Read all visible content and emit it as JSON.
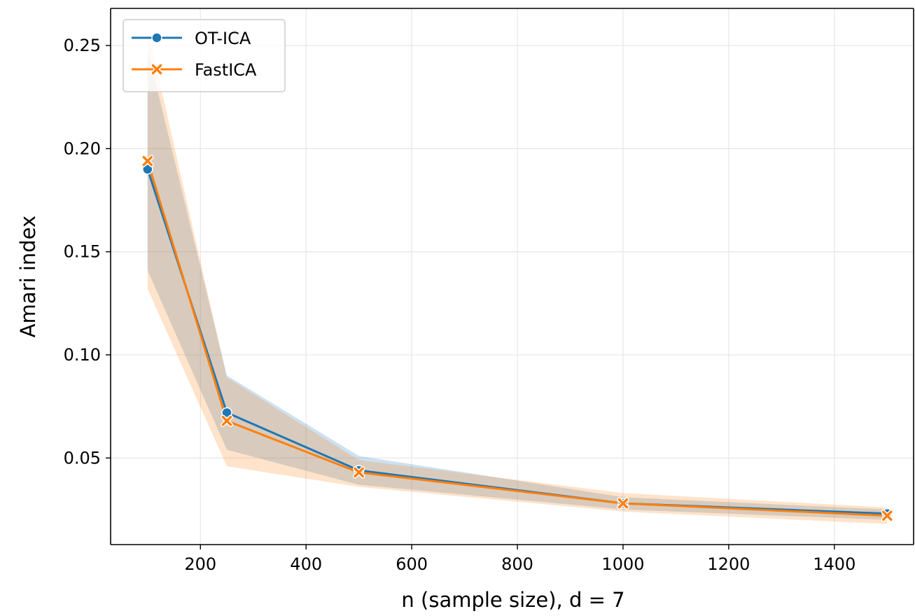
{
  "chart_data": {
    "type": "line",
    "title": "",
    "xlabel": "n (sample size), d = 7",
    "ylabel": "Amari index",
    "x": [
      100,
      250,
      500,
      1000,
      1500
    ],
    "xlim": [
      30,
      1550
    ],
    "ylim": [
      0.008,
      0.268
    ],
    "xticks": [
      200,
      400,
      600,
      800,
      1000,
      1200,
      1400
    ],
    "yticks": [
      0.05,
      0.1,
      0.15,
      0.2,
      0.25
    ],
    "xtick_labels": [
      "200",
      "400",
      "600",
      "800",
      "1000",
      "1200",
      "1400"
    ],
    "ytick_labels": [
      "0.05",
      "0.10",
      "0.15",
      "0.20",
      "0.25"
    ],
    "grid": true,
    "legend_position": "top-left",
    "series": [
      {
        "name": "OT-ICA",
        "marker": "circle",
        "color": "#1f77b4",
        "values": [
          0.19,
          0.072,
          0.044,
          0.028,
          0.023
        ],
        "ci_lower": [
          0.141,
          0.054,
          0.037,
          0.025,
          0.02
        ],
        "ci_upper": [
          0.248,
          0.09,
          0.051,
          0.031,
          0.025
        ]
      },
      {
        "name": "FastICA",
        "marker": "x",
        "color": "#ff7f0e",
        "values": [
          0.194,
          0.068,
          0.043,
          0.028,
          0.022
        ],
        "ci_lower": [
          0.132,
          0.046,
          0.036,
          0.024,
          0.018
        ],
        "ci_upper": [
          0.258,
          0.089,
          0.049,
          0.033,
          0.026
        ]
      }
    ]
  }
}
